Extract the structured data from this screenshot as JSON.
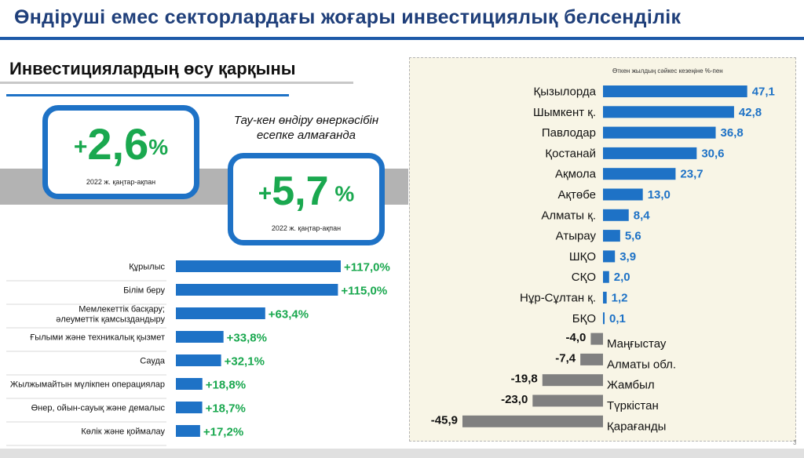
{
  "page_title": "Өндіруші емес секторлардағы жоғары инвестициялық белсенділік",
  "section_title": "Инвестициялардың өсу қарқыны",
  "kpis": [
    {
      "sign": "+",
      "value": "2,6",
      "unit": "%",
      "caption": "2022 ж. қаңтар-ақпан"
    },
    {
      "sign": "+",
      "value": "5,7",
      "unit": " %",
      "caption": "2022 ж. қаңтар-ақпан"
    }
  ],
  "exclusion_note": "Тау-кен өндіру өнеркәсібін есепке алмағанда",
  "page_number": "3",
  "colors": {
    "title": "#1f3f7a",
    "accent_blue": "#1e72c6",
    "growth_green": "#1aa84f",
    "negative_gray": "#808080",
    "panel_bg": "#f8f5e6"
  },
  "chart_data": [
    {
      "type": "bar",
      "orientation": "horizontal",
      "categories": [
        "Құрылыс",
        "Білім беру",
        "Мемлекеттік басқару; әлеуметтік қамсыздандыру",
        "Ғылыми және техникалық қызмет",
        "Сауда",
        "Жылжымайтын мүлікпен операциялар",
        "Өнер, ойын-сауық және демалыс",
        "Көлік және қоймалау"
      ],
      "values": [
        117.0,
        115.0,
        63.4,
        33.8,
        32.1,
        18.8,
        18.7,
        17.2
      ],
      "value_labels": [
        "+117,0%",
        "+115,0%",
        "+63,4%",
        "+33,8%",
        "+32,1%",
        "+18,8%",
        "+18,7%",
        "+17,2%"
      ],
      "grid": false,
      "legend": "none"
    },
    {
      "type": "bar",
      "orientation": "horizontal",
      "title": "Өткен жылдың сәйкес кезеңіне %-пен",
      "categories": [
        "Қызылорда",
        "Шымкент қ.",
        "Павлодар",
        "Қостанай",
        "Ақмола",
        "Ақтөбе",
        "Алматы қ.",
        "Атырау",
        "ШҚО",
        "СҚО",
        "Нұр-Сұлтан қ.",
        "БҚО",
        "Маңғыстау",
        "Алматы обл.",
        "Жамбыл",
        "Түркістан",
        "Қарағанды"
      ],
      "values": [
        47.1,
        42.8,
        36.8,
        30.6,
        23.7,
        13.0,
        8.4,
        5.6,
        3.9,
        2.0,
        1.2,
        0.1,
        -4.0,
        -7.4,
        -19.8,
        -23.0,
        -45.9
      ],
      "value_labels": [
        "47,1",
        "42,8",
        "36,8",
        "30,6",
        "23,7",
        "13,0",
        "8,4",
        "5,6",
        "3,9",
        "2,0",
        "1,2",
        "0,1",
        "-4,0",
        "-7,4",
        "-19,8",
        "-23,0",
        "-45,9"
      ],
      "grid": false,
      "legend": "none"
    }
  ]
}
